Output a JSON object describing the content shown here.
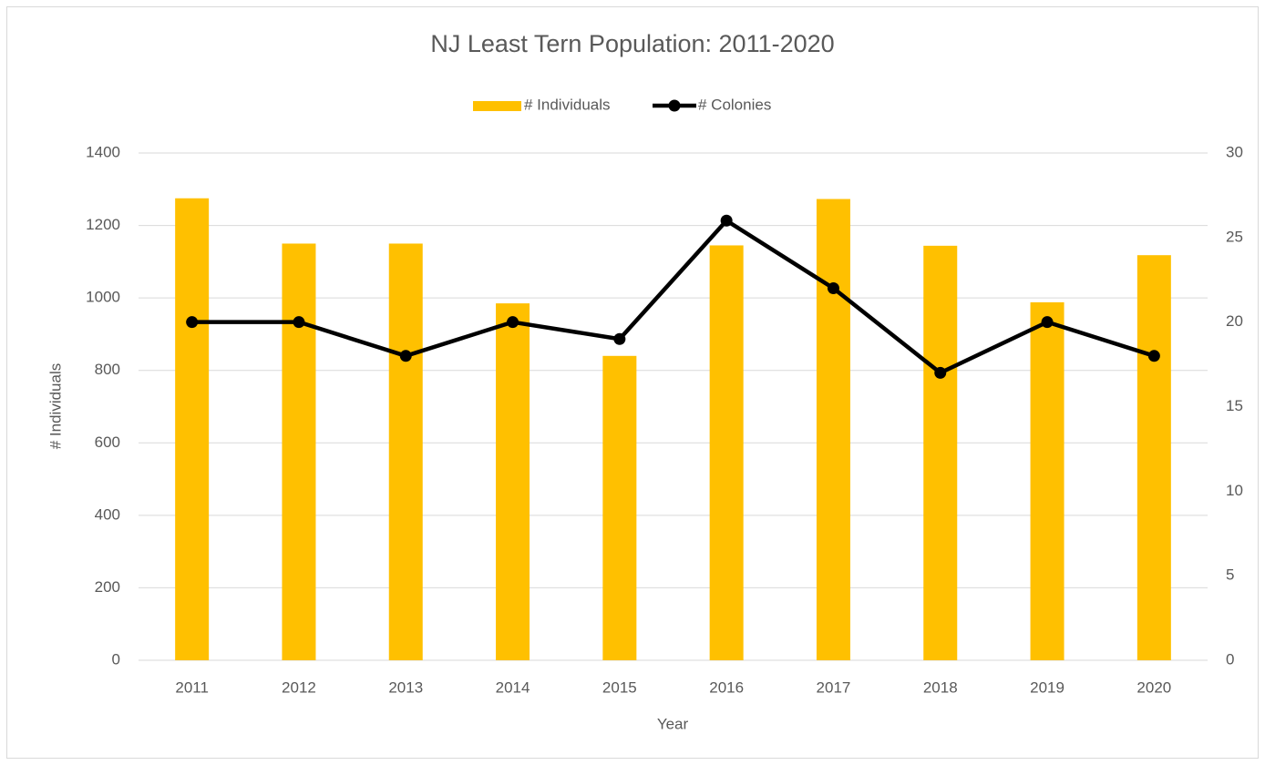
{
  "chart_data": {
    "type": "combo",
    "title": "NJ Least Tern Population: 2011-2020",
    "x_label": "Year",
    "y_label": "# Individuals",
    "categories": [
      "2011",
      "2012",
      "2013",
      "2014",
      "2015",
      "2016",
      "2017",
      "2018",
      "2019",
      "2020"
    ],
    "series": [
      {
        "name": "# Individuals",
        "color": "#FFC000",
        "values": [
          1275,
          1150,
          1150,
          985,
          840,
          1145,
          1273,
          1144,
          988,
          1118
        ]
      },
      {
        "name": "# Colonies",
        "color": "#000000",
        "axis": "y2",
        "values": [
          20,
          20,
          18,
          20,
          19,
          26,
          22,
          17,
          20,
          18
        ]
      }
    ],
    "ylim": [
      0,
      1400
    ],
    "yticks": [
      0,
      200,
      400,
      600,
      800,
      1000,
      1200,
      1400
    ],
    "y2lim": [
      0,
      30
    ],
    "y2ticks": [
      0,
      5,
      10,
      15,
      20,
      25,
      30
    ],
    "grid": true,
    "legend": "top"
  }
}
